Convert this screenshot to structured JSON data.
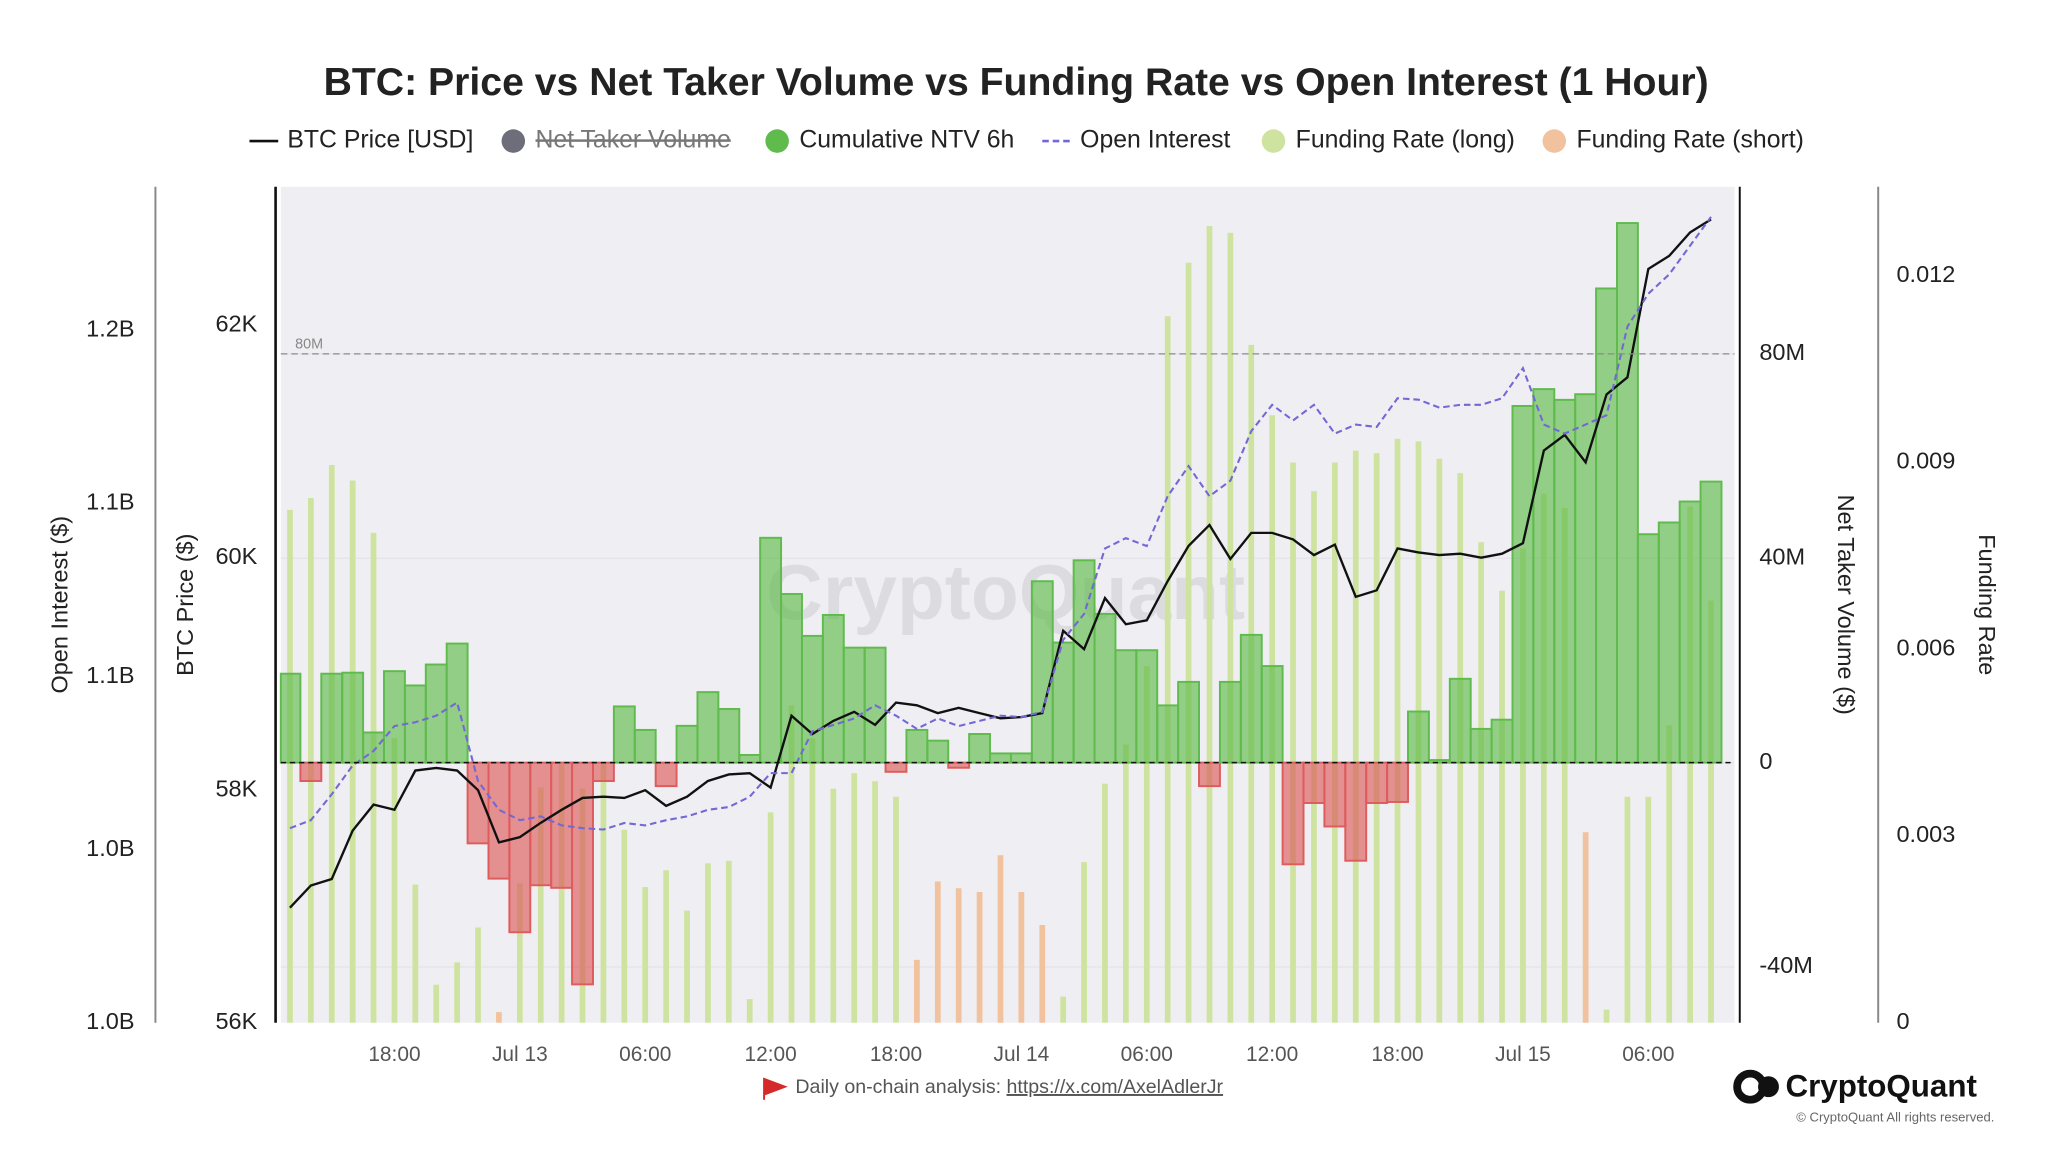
{
  "chart_data": {
    "type": "combo",
    "title": "BTC: Price vs Net Taker Volume vs Funding Rate vs Open Interest (1 Hour)",
    "watermark": "CryptoQuant",
    "x": [
      "Jul 12 13:00",
      "Jul 12 14:00",
      "Jul 12 15:00",
      "Jul 12 16:00",
      "Jul 12 17:00",
      "Jul 12 18:00",
      "Jul 12 19:00",
      "Jul 12 20:00",
      "Jul 12 21:00",
      "Jul 12 22:00",
      "Jul 12 23:00",
      "Jul 13 00:00",
      "Jul 13 01:00",
      "Jul 13 02:00",
      "Jul 13 03:00",
      "Jul 13 04:00",
      "Jul 13 05:00",
      "Jul 13 06:00",
      "Jul 13 07:00",
      "Jul 13 08:00",
      "Jul 13 09:00",
      "Jul 13 10:00",
      "Jul 13 11:00",
      "Jul 13 12:00",
      "Jul 13 13:00",
      "Jul 13 14:00",
      "Jul 13 15:00",
      "Jul 13 16:00",
      "Jul 13 17:00",
      "Jul 13 18:00",
      "Jul 13 19:00",
      "Jul 13 20:00",
      "Jul 13 21:00",
      "Jul 13 22:00",
      "Jul 13 23:00",
      "Jul 14 00:00",
      "Jul 14 01:00",
      "Jul 14 02:00",
      "Jul 14 03:00",
      "Jul 14 04:00",
      "Jul 14 05:00",
      "Jul 14 06:00",
      "Jul 14 07:00",
      "Jul 14 08:00",
      "Jul 14 09:00",
      "Jul 14 10:00",
      "Jul 14 11:00",
      "Jul 14 12:00",
      "Jul 14 13:00",
      "Jul 14 14:00",
      "Jul 14 15:00",
      "Jul 14 16:00",
      "Jul 14 17:00",
      "Jul 14 18:00",
      "Jul 14 19:00",
      "Jul 14 20:00",
      "Jul 14 21:00",
      "Jul 14 22:00",
      "Jul 14 23:00",
      "Jul 15 00:00",
      "Jul 15 01:00",
      "Jul 15 02:00",
      "Jul 15 03:00",
      "Jul 15 04:00",
      "Jul 15 05:00",
      "Jul 15 06:00",
      "Jul 15 07:00",
      "Jul 15 08:00",
      "Jul 15 09:00"
    ],
    "xticks": [
      {
        "value": "Jul 12 18:00",
        "label": "18:00"
      },
      {
        "value": "Jul 13 00:00",
        "label": "Jul 13"
      },
      {
        "value": "Jul 13 06:00",
        "label": "06:00"
      },
      {
        "value": "Jul 13 12:00",
        "label": "12:00"
      },
      {
        "value": "Jul 13 18:00",
        "label": "18:00"
      },
      {
        "value": "Jul 14 00:00",
        "label": "Jul 14"
      },
      {
        "value": "Jul 14 06:00",
        "label": "06:00"
      },
      {
        "value": "Jul 14 12:00",
        "label": "12:00"
      },
      {
        "value": "Jul 14 18:00",
        "label": "18:00"
      },
      {
        "value": "Jul 15 00:00",
        "label": "Jul 15"
      },
      {
        "value": "Jul 15 06:00",
        "label": "06:00"
      }
    ],
    "ylabel": "BTC Price ($)",
    "ylim": [
      56000,
      63190
    ],
    "yticks": [
      {
        "value": 56000,
        "label": "56K"
      },
      {
        "value": 58000,
        "label": "58K"
      },
      {
        "value": 60000,
        "label": "60K"
      },
      {
        "value": 62000,
        "label": "62K"
      }
    ],
    "y2label": "Net Taker Volume ($)",
    "y2lim": [
      -50900000,
      112700000
    ],
    "y2ticks": [
      {
        "value": -40000000,
        "label": "-40M"
      },
      0,
      {
        "value": 40000000,
        "label": "40M"
      },
      {
        "value": 80000000,
        "label": "80M"
      }
    ],
    "y3label": "Open Interest ($)",
    "y3lim": [
      1000000000,
      1241500000
    ],
    "y3ticks": [
      {
        "value": 1000000000,
        "label": "1.0B"
      },
      {
        "value": 1050000000,
        "label": "1.0B"
      },
      {
        "value": 1100000000,
        "label": "1.1B"
      },
      {
        "value": 1150000000,
        "label": "1.1B"
      },
      {
        "value": 1200000000,
        "label": "1.2B"
      }
    ],
    "y4label": "Funding Rate",
    "y4lim": [
      0,
      0.01343
    ],
    "y4ticks": [
      0,
      0.003,
      0.006,
      0.009,
      0.012
    ],
    "reference_lines": [
      {
        "value": 80000000,
        "label": "80M",
        "axis": "y2"
      }
    ],
    "series": [
      {
        "name": "BTC Price [USD]",
        "type": "line",
        "color": "#111111",
        "axis": "y",
        "values": [
          56989,
          57180,
          57236,
          57652,
          57876,
          57831,
          58169,
          58191,
          58169,
          58000,
          57551,
          57596,
          57719,
          57831,
          57933,
          57944,
          57933,
          58000,
          57865,
          57944,
          58079,
          58135,
          58146,
          58022,
          58640,
          58483,
          58596,
          58674,
          58562,
          58753,
          58730,
          58663,
          58708,
          58663,
          58618,
          58629,
          58663,
          59371,
          59213,
          59652,
          59427,
          59461,
          59798,
          60101,
          60281,
          59989,
          60213,
          60213,
          60157,
          60022,
          60112,
          59663,
          59719,
          60079,
          60045,
          60022,
          60034,
          60000,
          60034,
          60124,
          60921,
          61056,
          60820,
          61404,
          61551,
          62483,
          62596,
          62798,
          62910
        ]
      },
      {
        "name": "Net Taker Volume",
        "type": "hidden",
        "color": "#6e6d7a"
      },
      {
        "name": "Cumulative NTV 6h",
        "type": "step-area",
        "color": "#5fbb4c",
        "negative_color": "#dd5c5c",
        "axis": "y2",
        "values": [
          17400000,
          -3600000,
          17400000,
          17600000,
          5900000,
          17900000,
          15100000,
          19200000,
          23300000,
          -15800000,
          -22700000,
          -33200000,
          -24000000,
          -24500000,
          -43400000,
          -3600000,
          11000000,
          6400000,
          -4600000,
          7200000,
          13800000,
          10500000,
          1500000,
          44000000,
          33000000,
          24800000,
          28900000,
          22500000,
          22500000,
          -1800000,
          6400000,
          4300000,
          -1000000,
          5600000,
          1800000,
          1800000,
          35500000,
          23500000,
          39600000,
          29100000,
          22000000,
          22000000,
          11200000,
          15800000,
          -4600000,
          15800000,
          25000000,
          18900000,
          -19900000,
          -7900000,
          -12500000,
          -19200000,
          -7900000,
          -7700000,
          10000000,
          500000,
          16400000,
          6600000,
          8400000,
          69800000,
          73100000,
          71000000,
          72100000,
          92800000,
          105600000,
          44700000,
          47000000,
          51100000,
          55000000
        ]
      },
      {
        "name": "Open Interest",
        "type": "line",
        "dash": true,
        "color": "#7468d4",
        "axis": "y3",
        "values": [
          1056200000,
          1058500000,
          1066000000,
          1074300000,
          1078500000,
          1085700000,
          1086800000,
          1088700000,
          1092500000,
          1069800000,
          1061500000,
          1058500000,
          1059600000,
          1057000000,
          1056200000,
          1055800000,
          1057700000,
          1057000000,
          1058500000,
          1059600000,
          1061500000,
          1062300000,
          1065300000,
          1072100000,
          1072100000,
          1084200000,
          1086000000,
          1087900000,
          1091700000,
          1088700000,
          1084900000,
          1087900000,
          1085700000,
          1087200000,
          1088700000,
          1088300000,
          1089800000,
          1110600000,
          1118100000,
          1137000000,
          1140000000,
          1137700000,
          1152100000,
          1160800000,
          1152100000,
          1156600000,
          1170900000,
          1178500000,
          1174000000,
          1178500000,
          1170200000,
          1172800000,
          1172100000,
          1180400000,
          1180000000,
          1177700000,
          1178500000,
          1178500000,
          1180400000,
          1189100000,
          1172800000,
          1170200000,
          1172800000,
          1175500000,
          1201100000,
          1210600000,
          1216200000,
          1224500000,
          1232800000
        ]
      },
      {
        "name": "Funding Rate (long)",
        "type": "bar",
        "color": "#cfe3a0",
        "axis": "y4",
        "values": [
          0.00824,
          0.00843,
          0.00896,
          0.00871,
          0.00787,
          0.00457,
          0.00222,
          0.00061,
          0.00097,
          0.00153,
          null,
          0.00224,
          0.00378,
          0.00415,
          0.00376,
          0.00417,
          0.0031,
          0.00218,
          0.00245,
          0.0018,
          0.00256,
          0.0026,
          0.00038,
          0.00338,
          0.0051,
          0.00457,
          0.00376,
          0.00401,
          0.00388,
          0.00363,
          null,
          null,
          null,
          null,
          null,
          null,
          null,
          0.00042,
          0.00258,
          0.00384,
          0.00447,
          0.00573,
          0.01135,
          0.01221,
          0.0128,
          0.01269,
          0.01089,
          0.00976,
          0.009,
          0.00854,
          0.009,
          0.00919,
          0.00915,
          0.00938,
          0.00934,
          0.00906,
          0.00883,
          0.00772,
          0.00694,
          0.00762,
          0.0085,
          0.00827,
          null,
          0.00021,
          0.00363,
          0.00363,
          0.00478,
          0.00829,
          0.00678
        ]
      },
      {
        "name": "Funding Rate (short)",
        "type": "bar",
        "color": "#f2c19d",
        "axis": "y4",
        "values": [
          null,
          null,
          null,
          null,
          null,
          null,
          null,
          null,
          null,
          null,
          0.00017,
          null,
          null,
          null,
          null,
          null,
          null,
          null,
          null,
          null,
          null,
          null,
          null,
          null,
          null,
          null,
          null,
          null,
          null,
          null,
          0.00101,
          0.00227,
          0.00216,
          0.0021,
          0.00269,
          0.0021,
          0.00157,
          null,
          null,
          null,
          null,
          null,
          null,
          null,
          null,
          null,
          null,
          null,
          null,
          null,
          null,
          null,
          null,
          null,
          null,
          null,
          null,
          null,
          null,
          null,
          null,
          null,
          0.00306,
          null,
          null,
          null,
          null,
          null,
          null
        ]
      }
    ]
  },
  "footer": {
    "caption": "Daily on-chain analysis: ",
    "link": "https://x.com/AxelAdlerJr",
    "brand": "CryptoQuant",
    "copyright": "© CryptoQuant All rights reserved."
  }
}
